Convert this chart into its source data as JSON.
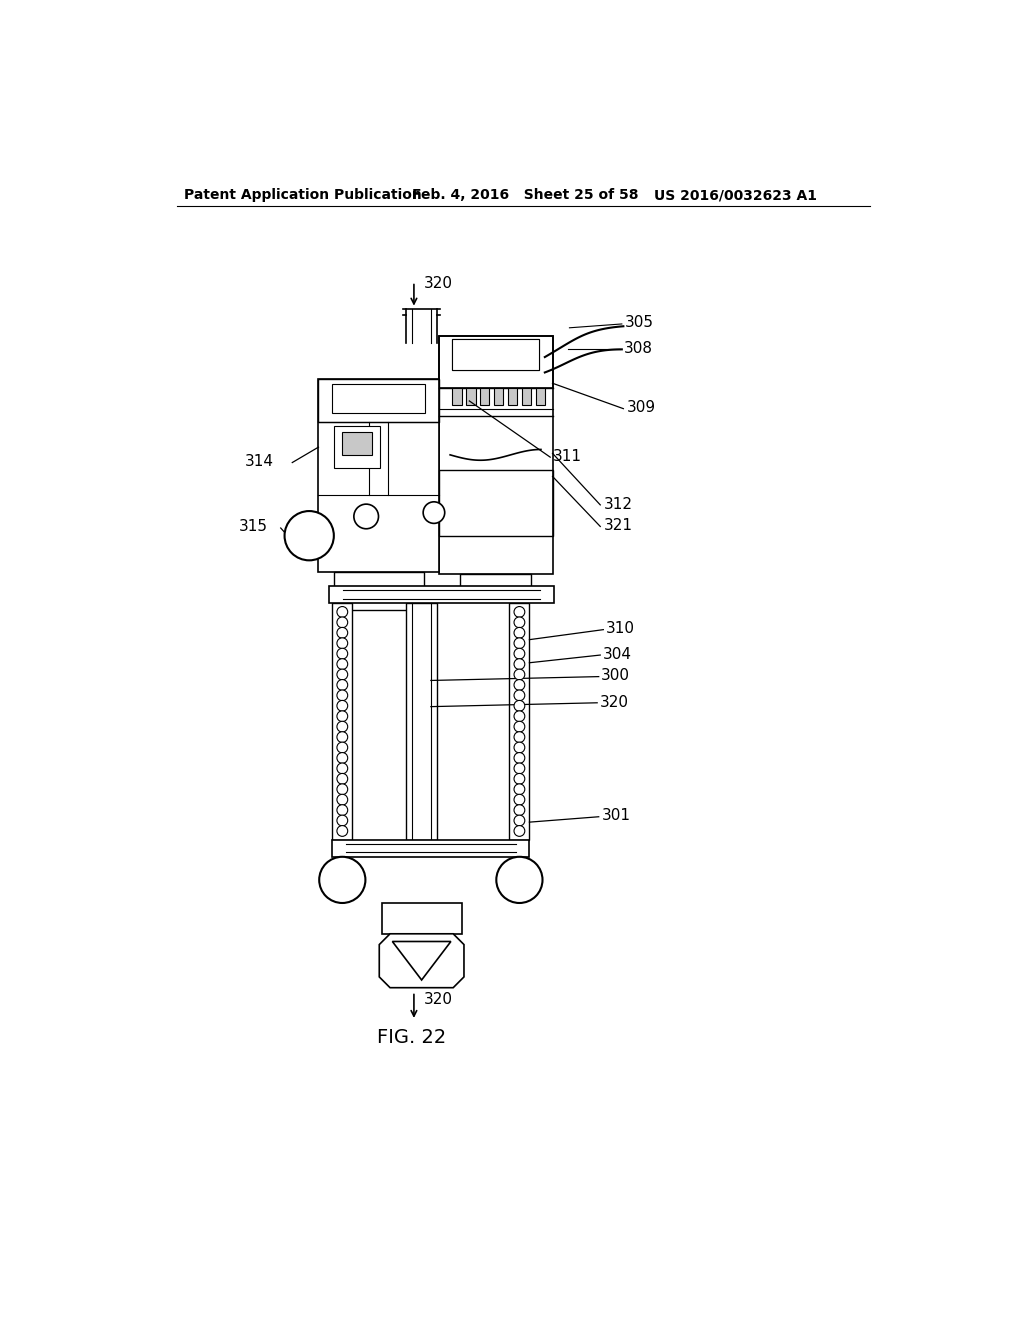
{
  "title_left": "Patent Application Publication",
  "title_mid": "Feb. 4, 2016   Sheet 25 of 58",
  "title_right": "US 2016/0032623 A1",
  "fig_label": "FIG. 22",
  "background": "#ffffff",
  "line_color": "#000000",
  "gray_light": "#c8c8c8",
  "gray_mid": "#a0a0a0"
}
